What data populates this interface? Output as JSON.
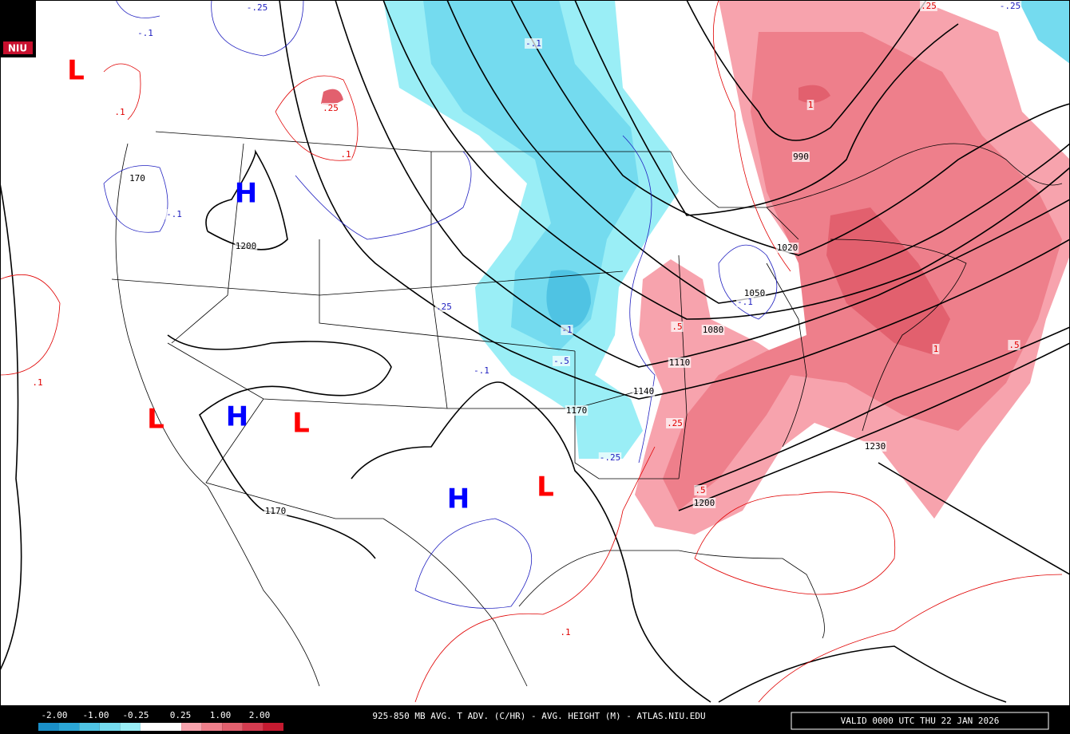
{
  "logo": "NIU",
  "pressure_centers": [
    {
      "label": "L",
      "color": "#ff0000"
    },
    {
      "label": "L",
      "color": "#ff0000"
    },
    {
      "label": "L",
      "color": "#ff0000"
    },
    {
      "label": "L",
      "color": "#ff0000"
    },
    {
      "label": "H",
      "color": "#0000ff"
    },
    {
      "label": "H",
      "color": "#0000ff"
    },
    {
      "label": "H",
      "color": "#0000ff"
    }
  ],
  "height_labels": [
    "1200",
    "1170",
    "1170",
    "1140",
    "1110",
    "1080",
    "1050",
    "1020",
    "990",
    "1230",
    "1200",
    "170"
  ],
  "warm_advection_labels": [
    ".25",
    ".1",
    ".1",
    ".1",
    ".5",
    ".25",
    ".5",
    ".1",
    ".5",
    "1",
    "1",
    ".25"
  ],
  "cold_advection_labels": [
    "-.25",
    "-.1",
    "-.1",
    "-.1",
    ".25",
    "-.1",
    "-.5",
    "-1",
    "-.25",
    "-.1",
    "-.25"
  ],
  "legend": {
    "ticks": [
      "-2.00",
      "-1.00",
      "-0.25",
      "0.25",
      "1.00",
      "2.00"
    ],
    "colors": [
      "#1a8fc8",
      "#2ba6d6",
      "#4fc3e3",
      "#74dbef",
      "#9aeef6",
      "#ffffff",
      "#ffffff",
      "#f7a3ad",
      "#ee7f8b",
      "#e2606e",
      "#d43c50",
      "#c41a30"
    ]
  },
  "footer": {
    "title": "925-850 MB AVG. T ADV. (C/HR) - AVG. HEIGHT (M) - ATLAS.NIU.EDU",
    "valid": "VALID 0000 UTC THU 22 JAN 2026"
  }
}
